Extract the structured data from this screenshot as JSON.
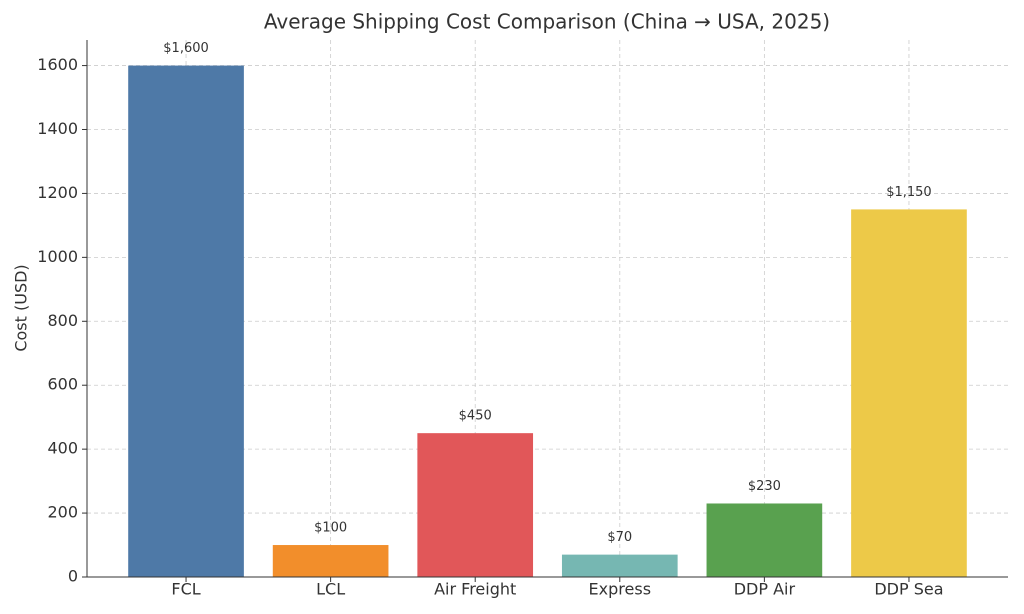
{
  "chart_data": {
    "type": "bar",
    "title": "Average Shipping Cost Comparison (China → USA, 2025)",
    "ylabel": "Cost (USD)",
    "categories": [
      "FCL",
      "LCL",
      "Air Freight",
      "Express",
      "DDP Air",
      "DDP Sea"
    ],
    "values": [
      1600,
      100,
      450,
      70,
      230,
      1150
    ],
    "value_labels": [
      "$1,600",
      "$100",
      "$450",
      "$70",
      "$230",
      "$1,150"
    ],
    "colors": [
      "#4e79a7",
      "#f28e2b",
      "#e15759",
      "#76b7b2",
      "#59a14f",
      "#edc948"
    ],
    "ylim": [
      0,
      1680
    ],
    "yticks": [
      0,
      200,
      400,
      600,
      800,
      1000,
      1200,
      1400,
      1600
    ],
    "grid": true
  }
}
